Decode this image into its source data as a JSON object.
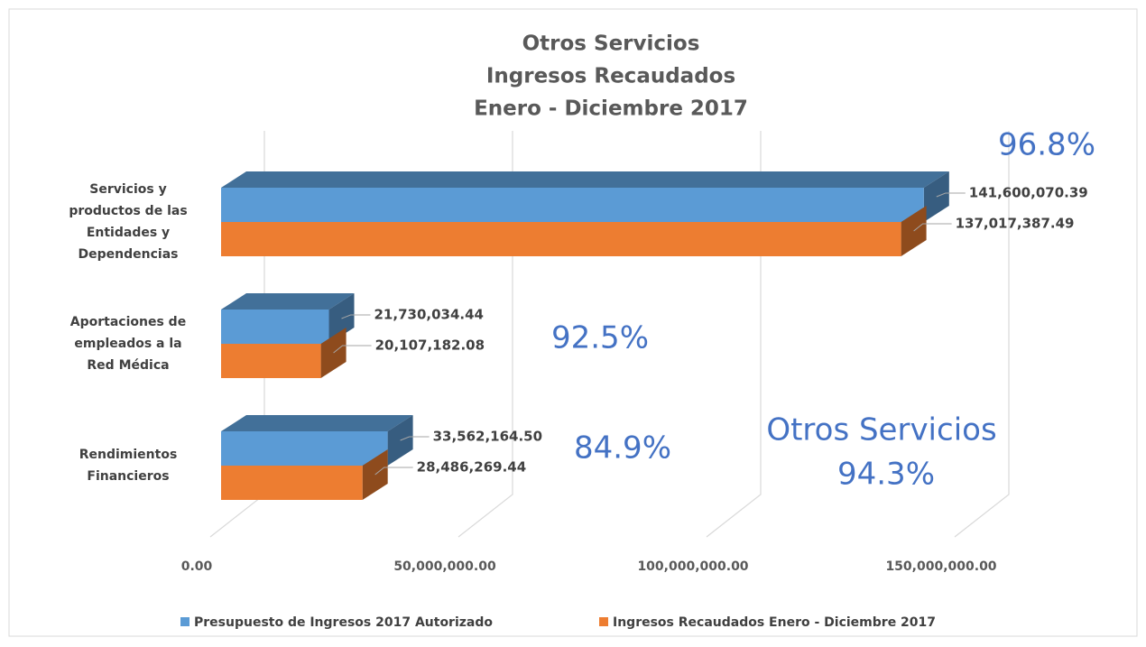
{
  "chart_data": {
    "type": "bar3d_horizontal",
    "title": [
      "Otros Servicios",
      "Ingresos Recaudados",
      "Enero - Diciembre 2017"
    ],
    "categories": [
      "Servicios y productos de las Entidades y Dependencias",
      "Aportaciones de empleados a la Red Médica",
      "Rendimientos Financieros"
    ],
    "series": [
      {
        "name": "Presupuesto de Ingresos 2017 Autorizado",
        "color": "#5b9bd5",
        "values": [
          141600070.39,
          21730034.44,
          33562164.5
        ],
        "value_labels": [
          "141,600,070.39",
          "21,730,034.44",
          "33,562,164.50"
        ]
      },
      {
        "name": "Ingresos Recaudados Enero - Diciembre 2017",
        "color": "#ed7d31",
        "values": [
          137017387.49,
          20107182.08,
          28486269.44
        ],
        "value_labels": [
          "137,017,387.49",
          "20,107,182.08",
          "28,486,269.44"
        ]
      }
    ],
    "xlim": [
      0,
      150000000
    ],
    "xticks": [
      {
        "value": 0,
        "label": "0.00"
      },
      {
        "value": 50000000,
        "label": "50,000,000.00"
      },
      {
        "value": 100000000,
        "label": "100,000,000.00"
      },
      {
        "value": 150000000,
        "label": "150,000,000.00"
      }
    ],
    "grid": true,
    "legend": "bottom",
    "annotations": [
      "96.8%",
      "92.5%",
      "84.9%",
      "Otros Servicios",
      "94.3%"
    ]
  }
}
